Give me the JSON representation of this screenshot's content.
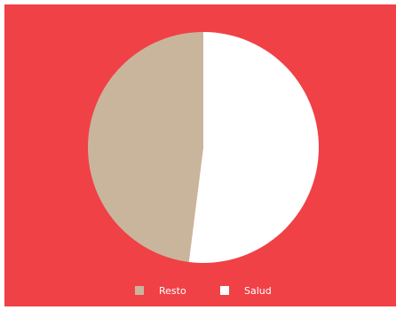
{
  "chart_data": {
    "type": "pie",
    "categories": [
      "Resto",
      "Salud"
    ],
    "values": [
      48,
      52
    ],
    "colors": [
      "#c9b59c",
      "#ffffff"
    ],
    "background": "#f04147"
  }
}
